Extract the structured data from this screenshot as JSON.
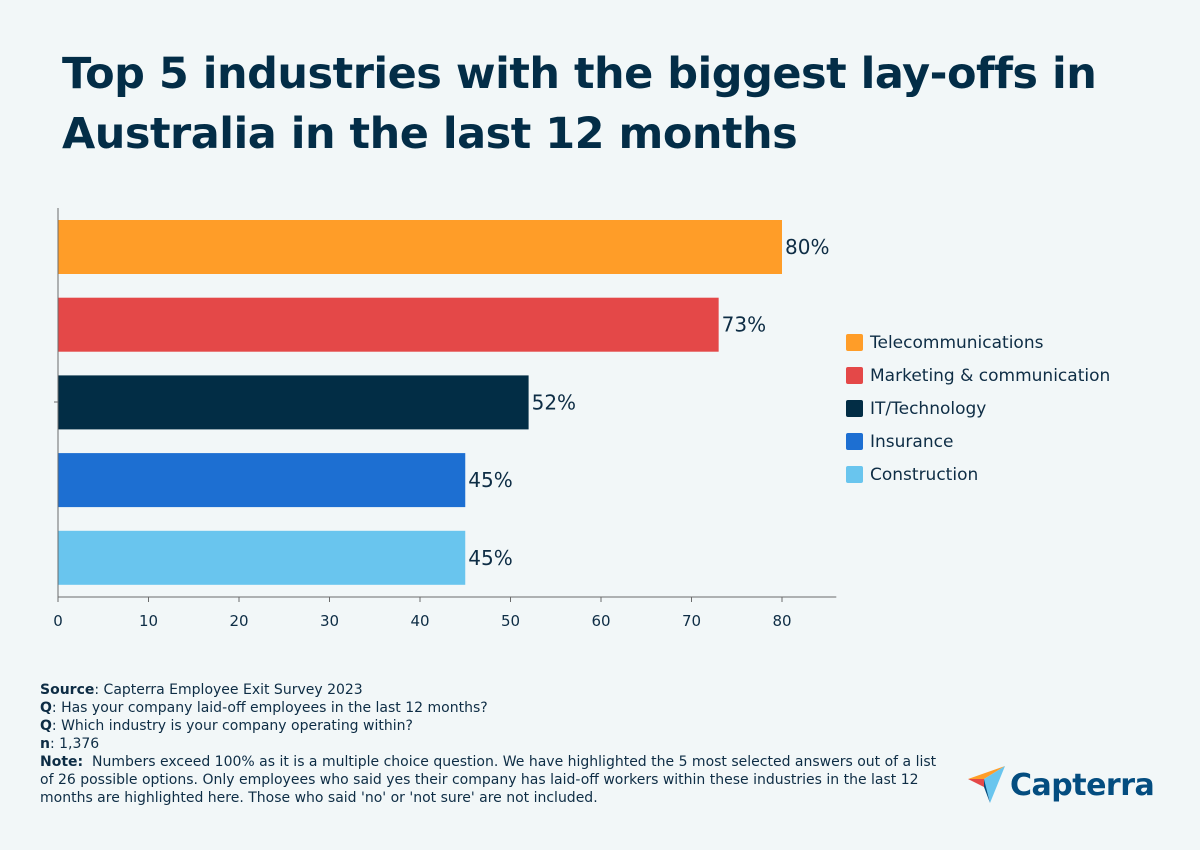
{
  "title": "Top 5 industries with the biggest lay-offs in Australia in the last 12 months",
  "chart_data": {
    "type": "bar",
    "orientation": "horizontal",
    "title": "Top 5 industries with the biggest lay-offs in Australia in the last 12 months",
    "categories": [
      "Telecommunications",
      "Marketing & communication",
      "IT/Technology",
      "Insurance",
      "Construction"
    ],
    "values": [
      80,
      73,
      52,
      45,
      45
    ],
    "value_labels": [
      "80%",
      "73%",
      "52%",
      "45%",
      "45%"
    ],
    "colors": [
      "#ff9d28",
      "#e44848",
      "#022d45",
      "#1d6fd2",
      "#69c5ee"
    ],
    "xlabel": "",
    "ylabel": "",
    "xlim": [
      0,
      86
    ],
    "xticks": [
      0,
      10,
      20,
      30,
      40,
      50,
      60,
      70,
      80
    ],
    "grid": false,
    "legend_position": "right"
  },
  "legend": [
    {
      "label": "Telecommunications",
      "color": "#ff9d28"
    },
    {
      "label": "Marketing & communication",
      "color": "#e44848"
    },
    {
      "label": "IT/Technology",
      "color": "#022d45"
    },
    {
      "label": "Insurance",
      "color": "#1d6fd2"
    },
    {
      "label": "Construction",
      "color": "#69c5ee"
    }
  ],
  "footer": {
    "source_label": "Source",
    "source_text": ": Capterra Employee Exit Survey 2023",
    "q1_label": "Q",
    "q1_text": ": Has your company laid-off employees in the last 12 months?",
    "q2_label": "Q",
    "q2_text": ": Which industry is your company operating within?",
    "n_label": "n",
    "n_text": ": 1,376",
    "note_label": "Note:",
    "note_text": "  Numbers exceed 100% as it is a multiple choice question. We have highlighted the 5 most selected answers out of a list of 26 possible options. Only employees who said yes their company has laid-off workers within these industries in the last 12 months are highlighted here. Those who said 'no' or 'not sure' are not included."
  },
  "logo": {
    "text": "Capterra"
  }
}
